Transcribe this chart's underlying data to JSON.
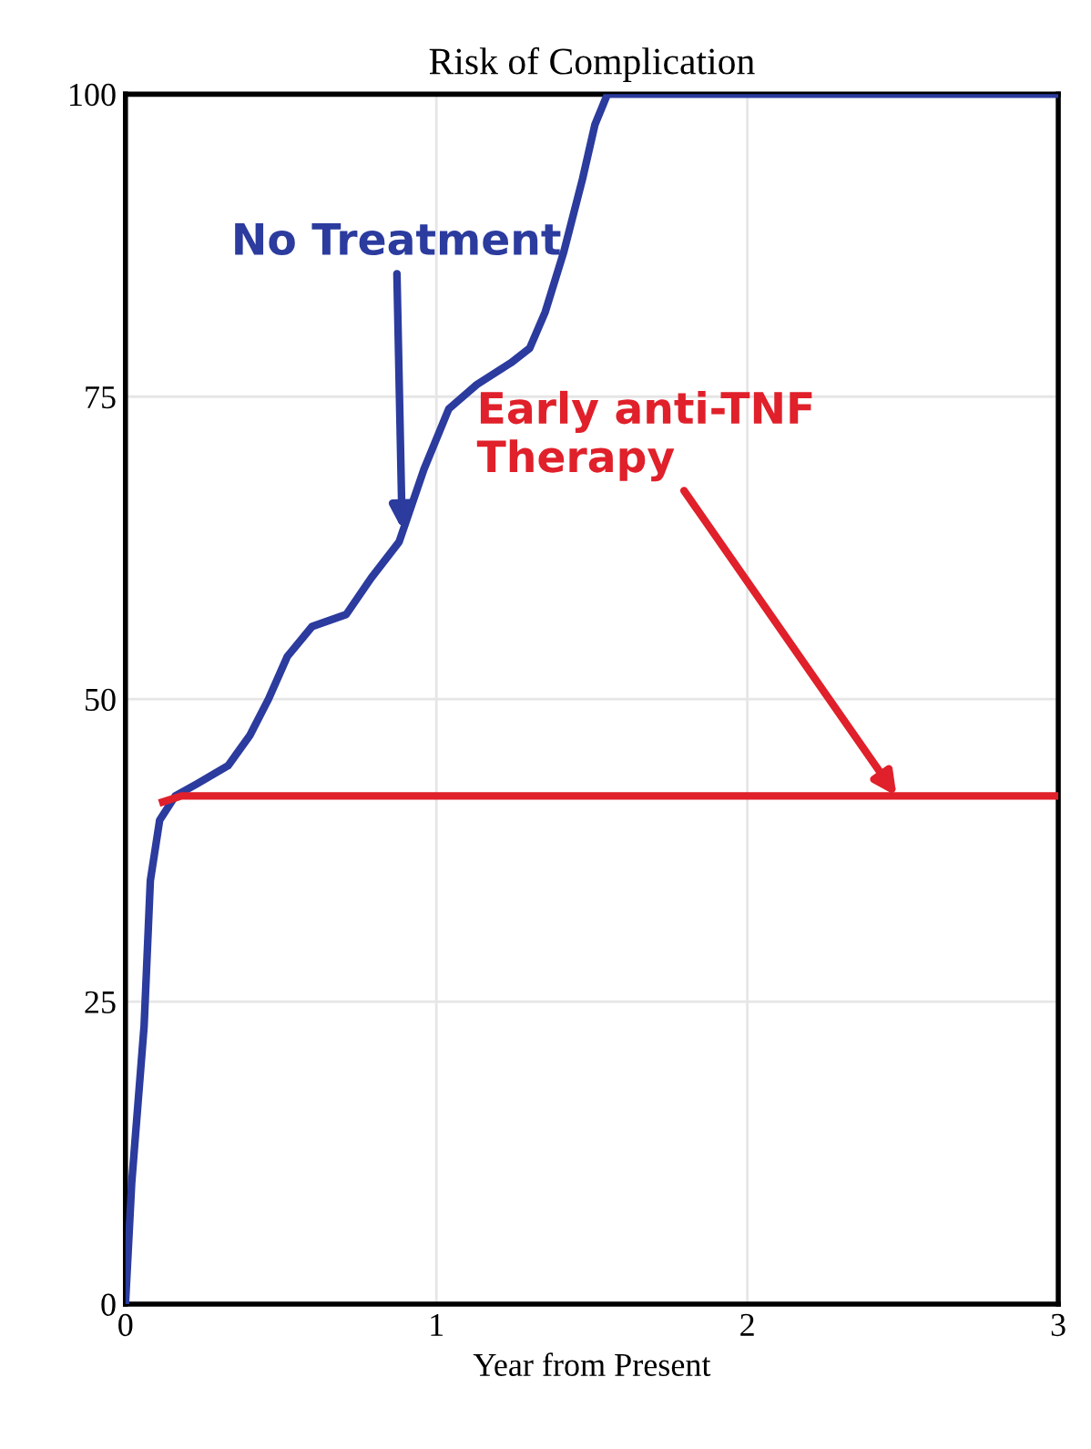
{
  "chart_data": {
    "type": "line",
    "title": "Risk of Complication",
    "xlabel": "Year from Present",
    "xlim": [
      0,
      3
    ],
    "ylim": [
      0,
      100
    ],
    "xticks": [
      0,
      1,
      2,
      3
    ],
    "yticks": [
      0,
      25,
      50,
      75,
      100
    ],
    "grid": true,
    "legend": false,
    "marker": "none",
    "line_style": "solid",
    "series": [
      {
        "color": "#2b3b9e",
        "x": [
          0,
          0.02,
          0.06,
          0.08,
          0.11,
          0.16,
          0.23,
          0.33,
          0.4,
          0.46,
          0.52,
          0.6,
          0.71,
          0.79,
          0.88,
          0.96,
          1.04,
          1.13,
          1.24,
          1.3,
          1.35,
          1.41,
          1.47,
          1.51,
          1.55,
          3
        ],
        "values": [
          0,
          10,
          23,
          35,
          40,
          42,
          43,
          44.5,
          47,
          50,
          53.5,
          56,
          57,
          60,
          63,
          69,
          74,
          76,
          77.8,
          79,
          82,
          87,
          93,
          97.5,
          100,
          100
        ]
      },
      {
        "color": "#e0202a",
        "x": [
          0.12,
          0.18,
          3
        ],
        "values": [
          41.5,
          42,
          42
        ]
      }
    ],
    "annotations": [
      {
        "text": "No Treatment",
        "x": 0.89,
        "y": 64
      },
      {
        "text": "Early anti-TNF\nTherapy",
        "x": 2.48,
        "y": 42
      }
    ]
  }
}
